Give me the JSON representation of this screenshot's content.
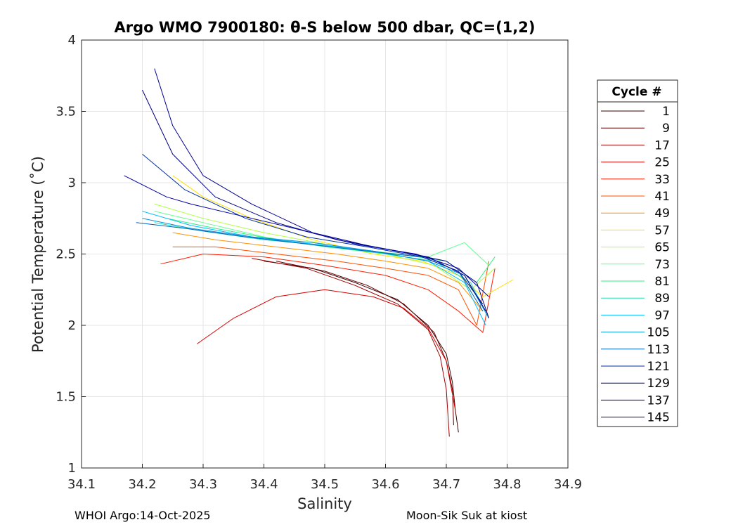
{
  "chart_data": {
    "type": "line",
    "title": "Argo WMO 7900180: θ-S below 500 dbar,  QC=(1,2)",
    "xlabel": "Salinity",
    "ylabel": "Potential Temperature (˚C)",
    "xlim": [
      34.1,
      34.9
    ],
    "ylim": [
      1,
      4
    ],
    "xticks": [
      "34.1",
      "34.2",
      "34.3",
      "34.4",
      "34.5",
      "34.6",
      "34.7",
      "34.8",
      "34.9"
    ],
    "yticks": [
      "1",
      "1.5",
      "2",
      "2.5",
      "3",
      "3.5",
      "4"
    ],
    "grid": true,
    "legend": {
      "title": "Cycle #",
      "position": "right",
      "entries": [
        "1",
        "9",
        "17",
        "25",
        "33",
        "41",
        "49",
        "57",
        "65",
        "73",
        "81",
        "89",
        "97",
        "105",
        "113",
        "121",
        "129",
        "137",
        "145"
      ],
      "colors": [
        "#3a0000",
        "#660000",
        "#9e0000",
        "#d60000",
        "#ff1a00",
        "#ff5000",
        "#ff9000",
        "#ffe000",
        "#b0ff40",
        "#60ff90",
        "#30ee80",
        "#20e0b0",
        "#00c0ff",
        "#0090e0",
        "#0060c0",
        "#0030a0",
        "#000080",
        "#000090",
        "#0000a8"
      ]
    },
    "series": [
      {
        "name": "1",
        "color": "#3a0000",
        "x": [
          34.4,
          34.48,
          34.55,
          34.62,
          34.67,
          34.7,
          34.71,
          34.715,
          34.72
        ],
        "y": [
          2.45,
          2.4,
          2.3,
          2.18,
          2.0,
          1.8,
          1.6,
          1.4,
          1.25
        ]
      },
      {
        "name": "9",
        "color": "#660000",
        "x": [
          34.42,
          34.5,
          34.57,
          34.63,
          34.68,
          34.7,
          34.71,
          34.712
        ],
        "y": [
          2.45,
          2.38,
          2.28,
          2.15,
          1.95,
          1.75,
          1.55,
          1.3
        ]
      },
      {
        "name": "17",
        "color": "#9e0000",
        "x": [
          34.38,
          34.47,
          34.55,
          34.62,
          34.67,
          34.69,
          34.7,
          34.705
        ],
        "y": [
          2.47,
          2.4,
          2.28,
          2.15,
          1.97,
          1.78,
          1.55,
          1.22
        ]
      },
      {
        "name": "25",
        "color": "#d60000",
        "x": [
          34.29,
          34.35,
          34.42,
          34.5,
          34.58,
          34.63,
          34.67,
          34.7,
          34.715
        ],
        "y": [
          1.87,
          2.05,
          2.2,
          2.25,
          2.2,
          2.12,
          1.98,
          1.75,
          1.4
        ]
      },
      {
        "name": "33",
        "color": "#ff1a00",
        "x": [
          34.23,
          34.3,
          34.4,
          34.5,
          34.6,
          34.67,
          34.72,
          34.76,
          34.78
        ],
        "y": [
          2.43,
          2.5,
          2.48,
          2.42,
          2.35,
          2.25,
          2.1,
          1.95,
          2.4
        ]
      },
      {
        "name": "41",
        "color": "#ff5000",
        "x": [
          34.25,
          34.32,
          34.42,
          34.52,
          34.6,
          34.67,
          34.72,
          34.75,
          34.77
        ],
        "y": [
          2.55,
          2.55,
          2.5,
          2.45,
          2.4,
          2.35,
          2.25,
          2.0,
          2.45
        ]
      },
      {
        "name": "49",
        "color": "#ff9000",
        "x": [
          34.25,
          34.32,
          34.42,
          34.52,
          34.6,
          34.67,
          34.72,
          34.76
        ],
        "y": [
          2.65,
          2.6,
          2.55,
          2.5,
          2.45,
          2.4,
          2.3,
          2.1
        ]
      },
      {
        "name": "57",
        "color": "#ffe000",
        "x": [
          34.25,
          34.3,
          34.38,
          34.48,
          34.58,
          34.66,
          34.72,
          34.76,
          34.81
        ],
        "y": [
          3.05,
          2.9,
          2.75,
          2.6,
          2.5,
          2.45,
          2.35,
          2.2,
          2.32
        ]
      },
      {
        "name": "65",
        "color": "#b0ff40",
        "x": [
          34.22,
          34.3,
          34.4,
          34.5,
          34.6,
          34.68,
          34.74,
          34.78
        ],
        "y": [
          2.85,
          2.75,
          2.65,
          2.57,
          2.5,
          2.42,
          2.25,
          2.4
        ]
      },
      {
        "name": "73",
        "color": "#60ff90",
        "x": [
          34.22,
          34.3,
          34.4,
          34.5,
          34.6,
          34.67,
          34.73,
          34.77
        ],
        "y": [
          2.8,
          2.72,
          2.62,
          2.55,
          2.5,
          2.48,
          2.58,
          2.42
        ]
      },
      {
        "name": "81",
        "color": "#30ee80",
        "x": [
          34.24,
          34.32,
          34.42,
          34.52,
          34.62,
          34.7,
          34.75,
          34.78
        ],
        "y": [
          2.75,
          2.68,
          2.6,
          2.55,
          2.5,
          2.45,
          2.3,
          2.48
        ]
      },
      {
        "name": "89",
        "color": "#20e0b0",
        "x": [
          34.22,
          34.3,
          34.4,
          34.5,
          34.6,
          34.68,
          34.74,
          34.77
        ],
        "y": [
          2.72,
          2.66,
          2.6,
          2.56,
          2.5,
          2.45,
          2.3,
          2.05
        ]
      },
      {
        "name": "97",
        "color": "#00c0ff",
        "x": [
          34.2,
          34.28,
          34.38,
          34.48,
          34.58,
          34.67,
          34.73,
          34.765
        ],
        "y": [
          2.8,
          2.7,
          2.62,
          2.57,
          2.52,
          2.45,
          2.3,
          2.0
        ]
      },
      {
        "name": "105",
        "color": "#0090e0",
        "x": [
          34.2,
          34.28,
          34.38,
          34.48,
          34.58,
          34.67,
          34.73,
          34.77
        ],
        "y": [
          2.75,
          2.68,
          2.62,
          2.58,
          2.52,
          2.45,
          2.35,
          2.05
        ]
      },
      {
        "name": "113",
        "color": "#0060c0",
        "x": [
          34.19,
          34.27,
          34.37,
          34.47,
          34.57,
          34.66,
          34.72,
          34.76
        ],
        "y": [
          2.72,
          2.68,
          2.62,
          2.57,
          2.52,
          2.48,
          2.38,
          2.1
        ]
      },
      {
        "name": "121",
        "color": "#0030a0",
        "x": [
          34.2,
          34.27,
          34.37,
          34.47,
          34.57,
          34.66,
          34.72,
          34.76
        ],
        "y": [
          3.2,
          2.95,
          2.75,
          2.62,
          2.55,
          2.48,
          2.38,
          2.15
        ]
      },
      {
        "name": "129",
        "color": "#000080",
        "x": [
          34.2,
          34.25,
          34.32,
          34.42,
          34.52,
          34.62,
          34.7,
          34.75,
          34.77
        ],
        "y": [
          3.65,
          3.2,
          2.9,
          2.72,
          2.6,
          2.52,
          2.45,
          2.3,
          2.05
        ]
      },
      {
        "name": "137",
        "color": "#000090",
        "x": [
          34.22,
          34.25,
          34.3,
          34.38,
          34.48,
          34.58,
          34.67,
          34.73,
          34.765
        ],
        "y": [
          3.8,
          3.4,
          3.05,
          2.85,
          2.65,
          2.55,
          2.48,
          2.35,
          2.1
        ]
      },
      {
        "name": "145",
        "color": "#0000a8",
        "x": [
          34.17,
          34.24,
          34.28,
          34.35,
          34.45,
          34.55,
          34.65,
          34.72,
          34.77
        ],
        "y": [
          3.05,
          2.9,
          2.85,
          2.78,
          2.68,
          2.57,
          2.5,
          2.4,
          2.2
        ]
      }
    ]
  },
  "footer": {
    "left": "WHOI Argo:14-Oct-2025",
    "right": "Moon-Sik Suk at kiost"
  }
}
